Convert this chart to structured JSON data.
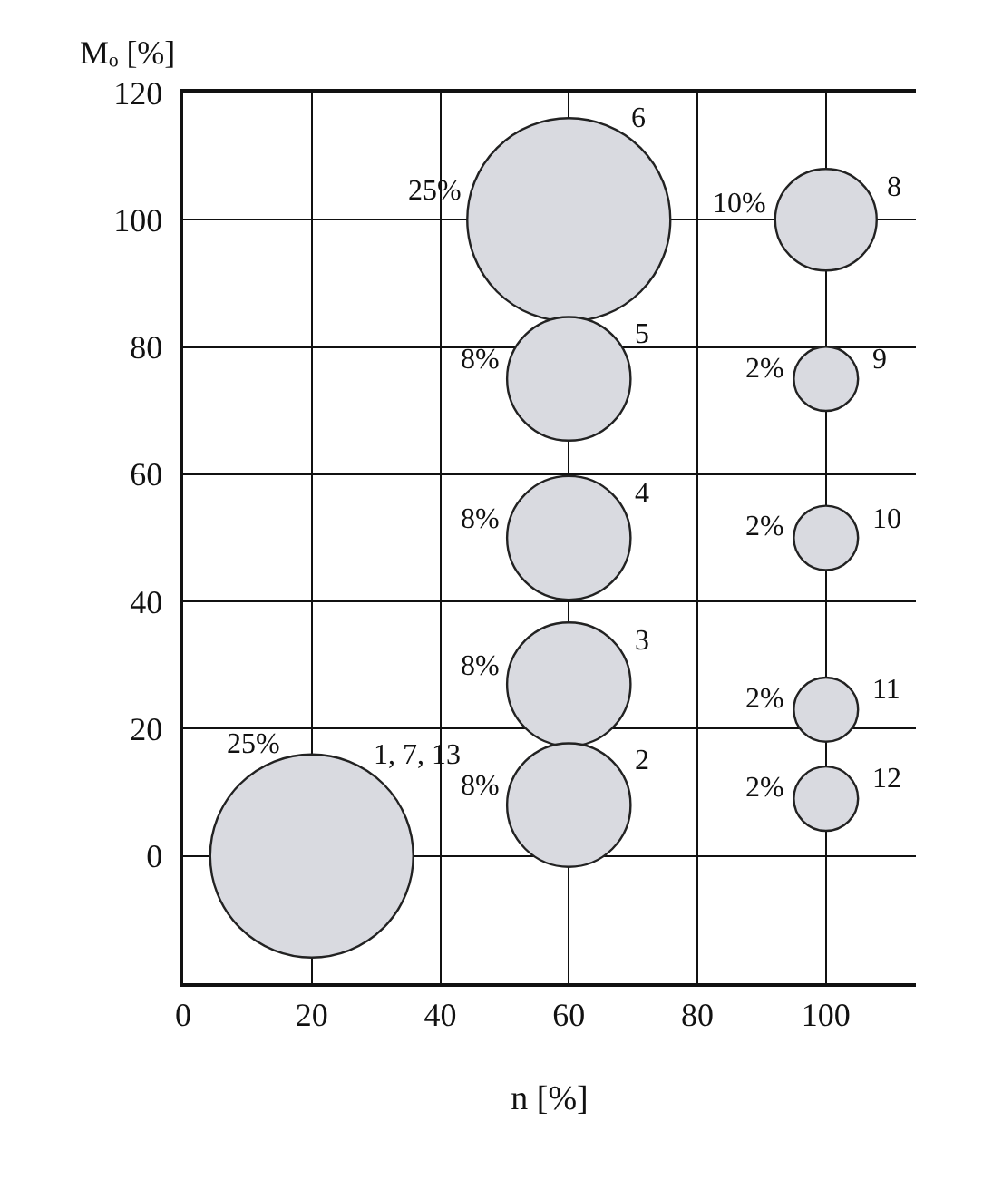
{
  "chart_data": {
    "type": "bubble",
    "xlabel": "n [%]",
    "ylabel": "Mₒ [%]",
    "xlim": [
      0,
      114
    ],
    "xticks": [
      0,
      20,
      40,
      60,
      80,
      100
    ],
    "ylim": [
      -20,
      120
    ],
    "yticks": [
      0,
      20,
      40,
      60,
      80,
      100,
      120
    ],
    "grid": true,
    "series": [
      {
        "color": "#d9dae0",
        "x": [
          20,
          60,
          100,
          60,
          100,
          60,
          100,
          60,
          100,
          60,
          100
        ],
        "values": [
          0,
          100,
          100,
          75,
          75,
          50,
          50,
          27,
          23,
          8,
          9
        ],
        "sizes": [
          1,
          1,
          0.25,
          0.37,
          0.1,
          0.37,
          0.1,
          0.37,
          0.1,
          0.37,
          0.1
        ]
      }
    ],
    "annotations": [
      "25%",
      "1, 7, 13",
      "25%",
      "6",
      "10%",
      "8",
      "8%",
      "5",
      "2%",
      "9",
      "8%",
      "4",
      "2%",
      "10",
      "8%",
      "3",
      "2%",
      "11",
      "8%",
      "2",
      "2%",
      "12"
    ]
  }
}
